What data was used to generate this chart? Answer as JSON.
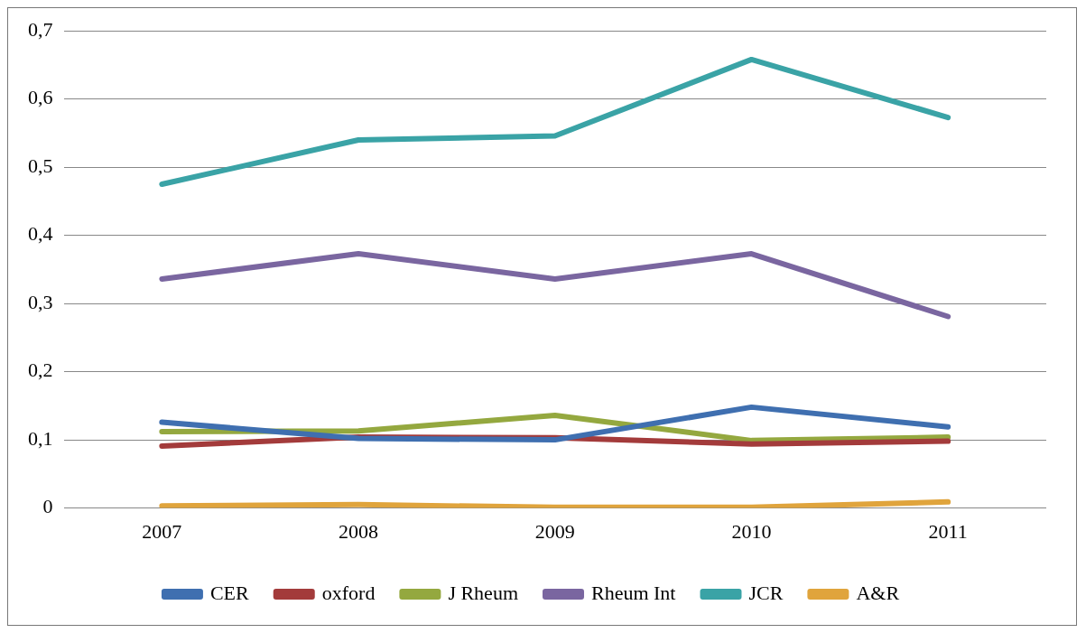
{
  "chart_data": {
    "type": "line",
    "categories": [
      "2007",
      "2008",
      "2009",
      "2010",
      "2011"
    ],
    "series": [
      {
        "name": "CER",
        "color": "#3f6fb0",
        "values": [
          0.126,
          0.102,
          0.1,
          0.148,
          0.119
        ]
      },
      {
        "name": "oxford",
        "color": "#a33b3b",
        "values": [
          0.091,
          0.104,
          0.103,
          0.094,
          0.098
        ]
      },
      {
        "name": "J Rheum",
        "color": "#94a83f",
        "values": [
          0.112,
          0.113,
          0.136,
          0.099,
          0.104
        ]
      },
      {
        "name": "Rheum Int",
        "color": "#7a66a0",
        "values": [
          0.336,
          0.373,
          0.336,
          0.373,
          0.281
        ]
      },
      {
        "name": "JCR",
        "color": "#3aa3a6",
        "values": [
          0.475,
          0.54,
          0.546,
          0.658,
          0.573
        ]
      },
      {
        "name": "A&R",
        "color": "#e0a43c",
        "values": [
          0.003,
          0.005,
          0.001,
          0.001,
          0.009
        ]
      }
    ],
    "ylim": [
      0,
      0.7
    ],
    "yticks": [
      0,
      {
        "value": 0.1,
        "label": "0,1"
      },
      {
        "value": 0.2,
        "label": "0,2"
      },
      {
        "value": 0.3,
        "label": "0,3"
      },
      {
        "value": 0.4,
        "label": "0,4"
      },
      {
        "value": 0.5,
        "label": "0,5"
      },
      {
        "value": 0.6,
        "label": "0,6"
      },
      {
        "value": 0.7,
        "label": "0,7"
      }
    ],
    "grid": "y",
    "legend": "bottom",
    "marker": "none",
    "line_style": "solid"
  }
}
